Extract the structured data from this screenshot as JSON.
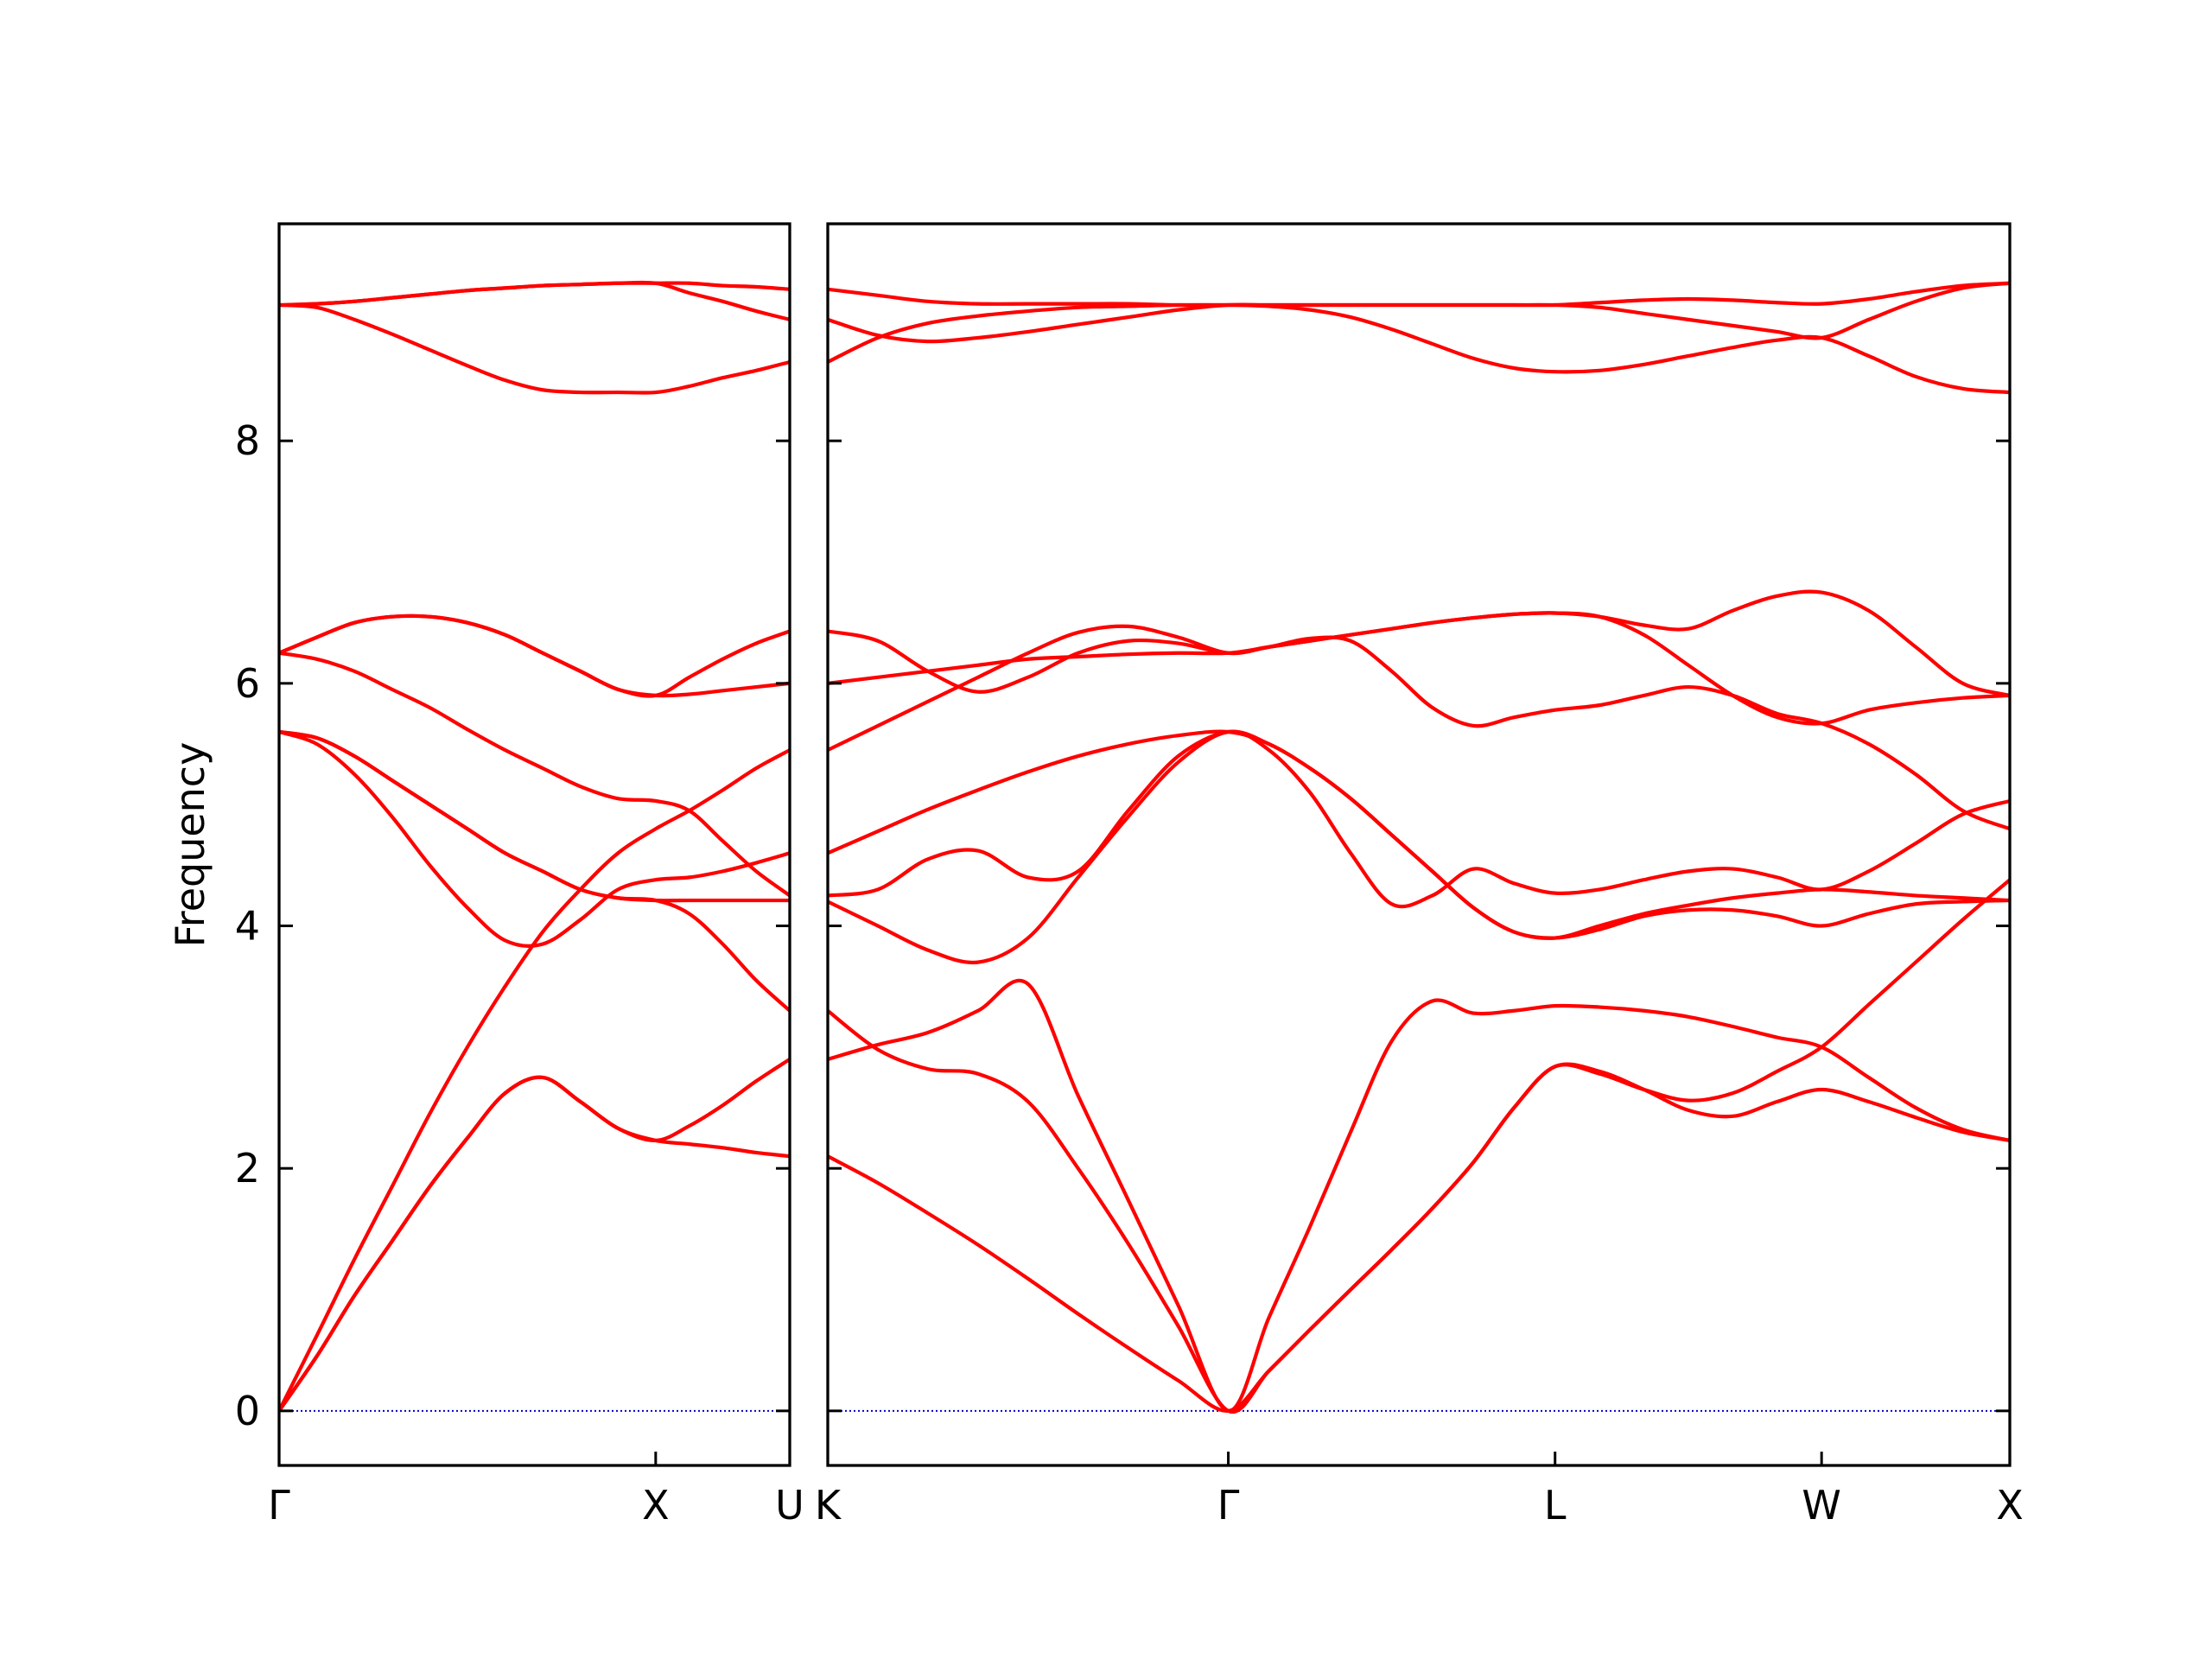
{
  "chart_data": [
    {
      "type": "line",
      "ylabel": "Frequency",
      "color": "#ff0000",
      "zero_line_color": "#0000cc",
      "x": [
        0,
        0.1,
        0.2,
        0.3,
        0.4,
        0.5,
        0.6,
        0.7,
        0.8,
        0.9,
        1,
        1.089,
        1.178,
        1.267,
        1.356
      ],
      "xlim": [
        0,
        1.356
      ],
      "xticks": [
        {
          "value": 0,
          "label": "Γ"
        },
        {
          "value": 1,
          "label": "X"
        },
        {
          "value": 1.356,
          "label": "U"
        }
      ],
      "ylim": [
        -0.45,
        9.79
      ],
      "yticks": [
        0,
        2,
        4,
        6,
        8
      ],
      "ytick_labels": true,
      "series": [
        {
          "values": [
            0,
            0.45,
            0.95,
            1.4,
            1.85,
            2.25,
            2.62,
            2.75,
            2.55,
            2.33,
            2.23,
            2.2,
            2.17,
            2.13,
            2.1
          ]
        },
        {
          "values": [
            0,
            0.45,
            0.95,
            1.4,
            1.85,
            2.25,
            2.62,
            2.75,
            2.55,
            2.33,
            2.23,
            2.35,
            2.52,
            2.72,
            2.9
          ]
        },
        {
          "values": [
            0,
            0.62,
            1.25,
            1.85,
            2.45,
            3.0,
            3.5,
            3.95,
            4.3,
            4.6,
            4.8,
            4.95,
            5.12,
            5.3,
            5.45
          ]
        },
        {
          "values": [
            5.6,
            5.5,
            5.25,
            4.9,
            4.5,
            4.15,
            3.88,
            3.85,
            4.05,
            4.3,
            4.38,
            4.4,
            4.45,
            4.52,
            4.6
          ]
        },
        {
          "values": [
            5.6,
            5.55,
            5.4,
            5.2,
            5.0,
            4.8,
            4.6,
            4.45,
            4.3,
            4.23,
            4.21,
            4.1,
            3.85,
            3.55,
            3.3
          ]
        },
        {
          "values": [
            5.6,
            5.55,
            5.4,
            5.2,
            5.0,
            4.8,
            4.6,
            4.45,
            4.3,
            4.23,
            4.21,
            4.21,
            4.21,
            4.21,
            4.21
          ]
        },
        {
          "values": [
            6.25,
            6.2,
            6.1,
            5.95,
            5.8,
            5.62,
            5.45,
            5.3,
            5.15,
            5.05,
            5.03,
            4.95,
            4.7,
            4.45,
            4.25
          ]
        },
        {
          "values": [
            6.25,
            6.38,
            6.5,
            6.55,
            6.55,
            6.5,
            6.4,
            6.25,
            6.1,
            5.95,
            5.9,
            5.91,
            5.94,
            5.97,
            6.0
          ]
        },
        {
          "values": [
            6.25,
            6.38,
            6.5,
            6.55,
            6.55,
            6.5,
            6.4,
            6.25,
            6.1,
            5.95,
            5.9,
            6.05,
            6.2,
            6.33,
            6.43
          ]
        },
        {
          "values": [
            9.12,
            9.1,
            9.0,
            8.88,
            8.75,
            8.62,
            8.5,
            8.42,
            8.4,
            8.4,
            8.4,
            8.45,
            8.52,
            8.58,
            8.65
          ]
        },
        {
          "values": [
            9.12,
            9.13,
            9.15,
            9.18,
            9.21,
            9.24,
            9.26,
            9.28,
            9.29,
            9.3,
            9.3,
            9.22,
            9.15,
            9.07,
            9.0
          ]
        },
        {
          "values": [
            9.12,
            9.13,
            9.15,
            9.18,
            9.21,
            9.24,
            9.26,
            9.28,
            9.29,
            9.3,
            9.3,
            9.3,
            9.28,
            9.27,
            9.25
          ]
        }
      ]
    },
    {
      "type": "line",
      "color": "#ff0000",
      "zero_line_color": "#0000cc",
      "x": [
        0,
        0.133,
        0.266,
        0.399,
        0.532,
        0.665,
        0.798,
        0.931,
        1.064,
        1.172,
        1.281,
        1.389,
        1.498,
        1.606,
        1.715,
        1.823,
        1.932,
        2.05,
        2.168,
        2.286,
        2.404,
        2.522,
        2.64,
        2.765,
        2.89,
        3.015,
        3.14
      ],
      "xlim": [
        0,
        3.14
      ],
      "xticks": [
        {
          "value": 0,
          "label": "K"
        },
        {
          "value": 1.064,
          "label": "Γ"
        },
        {
          "value": 1.932,
          "label": "L"
        },
        {
          "value": 2.64,
          "label": "W"
        },
        {
          "value": 3.14,
          "label": "X"
        }
      ],
      "ylim": [
        -0.45,
        9.79
      ],
      "yticks": [
        0,
        2,
        4,
        6,
        8
      ],
      "ytick_labels": false,
      "series": [
        {
          "values": [
            2.1,
            1.88,
            1.63,
            1.37,
            1.09,
            0.8,
            0.52,
            0.25,
            0,
            0.33,
            0.67,
            1.0,
            1.33,
            1.67,
            2.05,
            2.5,
            2.84,
            2.8,
            2.65,
            2.48,
            2.43,
            2.55,
            2.65,
            2.55,
            2.42,
            2.3,
            2.23
          ]
        },
        {
          "values": [
            3.3,
            2.98,
            2.82,
            2.78,
            2.55,
            2.0,
            1.38,
            0.7,
            0,
            0.33,
            0.67,
            1.0,
            1.33,
            1.67,
            2.05,
            2.5,
            2.84,
            2.78,
            2.65,
            2.56,
            2.62,
            2.8,
            3.0,
            3.35,
            3.7,
            4.05,
            4.38
          ]
        },
        {
          "values": [
            2.9,
            3.02,
            3.12,
            3.3,
            3.52,
            2.6,
            1.74,
            0.87,
            0,
            0.77,
            1.52,
            2.3,
            3.05,
            3.38,
            3.28,
            3.3,
            3.34,
            3.33,
            3.3,
            3.25,
            3.17,
            3.08,
            3.0,
            2.75,
            2.5,
            2.32,
            2.23
          ]
        },
        {
          "values": [
            4.2,
            4.0,
            3.8,
            3.7,
            3.9,
            4.4,
            4.9,
            5.35,
            5.6,
            5.45,
            5.1,
            4.6,
            4.18,
            4.25,
            4.47,
            4.35,
            4.27,
            4.3,
            4.38,
            4.45,
            4.47,
            4.4,
            4.3,
            4.45,
            4.68,
            4.92,
            5.03
          ]
        },
        {
          "values": [
            4.25,
            4.3,
            4.55,
            4.62,
            4.4,
            4.45,
            4.95,
            5.4,
            5.6,
            5.5,
            5.3,
            5.05,
            4.75,
            4.45,
            4.15,
            3.95,
            3.9,
            3.97,
            4.08,
            4.13,
            4.13,
            4.08,
            4.0,
            4.1,
            4.18,
            4.2,
            4.21
          ]
        },
        {
          "values": [
            4.6,
            4.78,
            4.96,
            5.12,
            5.27,
            5.4,
            5.5,
            5.57,
            5.6,
            5.5,
            5.3,
            5.05,
            4.75,
            4.45,
            4.15,
            3.95,
            3.9,
            4.0,
            4.1,
            4.17,
            4.23,
            4.27,
            4.3,
            4.28,
            4.25,
            4.23,
            4.21
          ]
        },
        {
          "values": [
            5.45,
            5.65,
            5.85,
            6.05,
            6.25,
            6.42,
            6.47,
            6.38,
            6.25,
            6.3,
            6.35,
            6.4,
            6.45,
            6.5,
            6.54,
            6.57,
            6.58,
            6.55,
            6.4,
            6.15,
            5.9,
            5.72,
            5.67,
            5.78,
            5.84,
            5.88,
            5.9
          ]
        },
        {
          "values": [
            6.0,
            6.05,
            6.1,
            6.15,
            6.2,
            6.22,
            6.24,
            6.25,
            6.25,
            6.3,
            6.35,
            6.4,
            6.45,
            6.5,
            6.54,
            6.57,
            6.58,
            6.55,
            6.48,
            6.45,
            6.6,
            6.72,
            6.75,
            6.6,
            6.3,
            6.0,
            5.9
          ]
        },
        {
          "values": [
            6.43,
            6.35,
            6.1,
            5.93,
            6.05,
            6.25,
            6.35,
            6.33,
            6.25,
            6.3,
            6.37,
            6.35,
            6.1,
            5.8,
            5.65,
            5.72,
            5.78,
            5.82,
            5.9,
            5.97,
            5.9,
            5.75,
            5.67,
            5.5,
            5.25,
            4.95,
            4.8
          ]
        },
        {
          "values": [
            8.65,
            8.85,
            8.97,
            9.03,
            9.07,
            9.1,
            9.11,
            9.12,
            9.12,
            9.11,
            9.08,
            9.02,
            8.92,
            8.8,
            8.68,
            8.6,
            8.57,
            8.58,
            8.63,
            8.7,
            8.77,
            8.83,
            8.85,
            8.7,
            8.53,
            8.43,
            8.4
          ]
        },
        {
          "values": [
            9.0,
            8.87,
            8.82,
            8.85,
            8.9,
            8.96,
            9.02,
            9.08,
            9.12,
            9.12,
            9.12,
            9.12,
            9.12,
            9.12,
            9.12,
            9.12,
            9.12,
            9.1,
            9.05,
            9.0,
            8.95,
            8.9,
            8.85,
            9.0,
            9.15,
            9.26,
            9.3
          ]
        },
        {
          "values": [
            9.25,
            9.2,
            9.15,
            9.13,
            9.13,
            9.13,
            9.13,
            9.12,
            9.12,
            9.12,
            9.12,
            9.12,
            9.12,
            9.12,
            9.12,
            9.12,
            9.12,
            9.14,
            9.16,
            9.17,
            9.16,
            9.14,
            9.13,
            9.17,
            9.23,
            9.28,
            9.3
          ]
        }
      ]
    }
  ]
}
